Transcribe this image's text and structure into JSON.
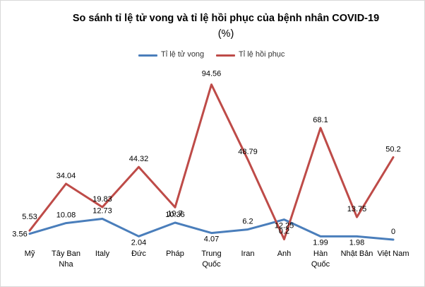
{
  "chart_data": {
    "type": "line",
    "title": "So sánh tỉ lệ tử vong và tỉ lệ hồi phục của bệnh nhân COVID-19",
    "subtitle": "(%)",
    "legend_position": "top",
    "categories": [
      "Mỹ",
      "Tây Ban Nha",
      "Italy",
      "Đức",
      "Pháp",
      "Trung Quốc",
      "Iran",
      "Anh",
      "Hàn Quốc",
      "Nhật Bản",
      "Việt Nam"
    ],
    "category_lines": [
      [
        "Mỹ"
      ],
      [
        "Tây Ban",
        "Nha"
      ],
      [
        "Italy"
      ],
      [
        "Đức"
      ],
      [
        "Pháp"
      ],
      [
        "Trung",
        "Quốc"
      ],
      [
        "Iran"
      ],
      [
        "Anh"
      ],
      [
        "Hàn",
        "Quốc"
      ],
      [
        "Nhật Bản"
      ],
      [
        "Việt Nam"
      ]
    ],
    "series": [
      {
        "name": "Tỉ lệ tử vong",
        "color": "#4a7ebb",
        "values": [
          3.56,
          10.08,
          12.73,
          2.04,
          10.36,
          4.07,
          6.2,
          12.25,
          1.99,
          1.98,
          0
        ],
        "labels": [
          "3.56",
          "10.08",
          "12.73",
          "2.04",
          "10.36",
          "4.07",
          "6.2",
          "12.25",
          "1.99",
          "1.98",
          "0"
        ]
      },
      {
        "name": "Tỉ lệ hồi phục",
        "color": "#be4b48",
        "values": [
          5.53,
          34.04,
          19.83,
          44.32,
          19.7,
          94.56,
          48.79,
          0.2,
          68.1,
          13.75,
          50.2
        ],
        "labels": [
          "5.53",
          "34.04",
          "19.83",
          "44.32",
          "19.7",
          "94.56",
          "48.79",
          "0.2",
          "68.1",
          "13.75",
          "50.2"
        ]
      }
    ],
    "grid": false
  }
}
